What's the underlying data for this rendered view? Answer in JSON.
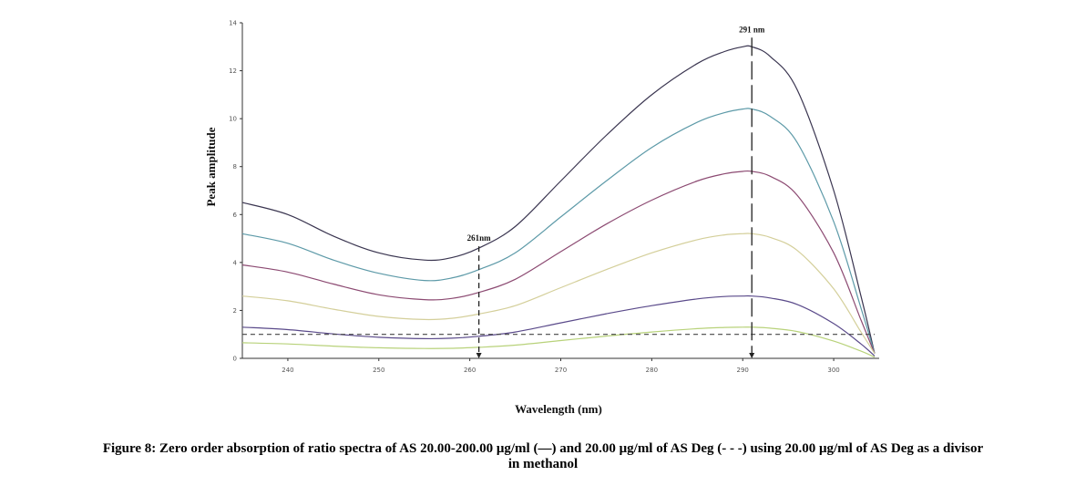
{
  "caption": {
    "line1": "Figure 8: Zero order absorption of ratio spectra of AS 20.00-200.00 μg/ml (—) and 20.00 μg/ml of AS Deg (- - -) using 20.00 μg/ml of AS Deg as a divisor",
    "line2": "in methanol"
  },
  "chart_data": {
    "type": "line",
    "xlabel": "Wavelength (nm)",
    "ylabel": "Peak amplitude",
    "xlim": [
      235,
      305
    ],
    "ylim": [
      0,
      14
    ],
    "xticks": [
      240,
      250,
      260,
      270,
      280,
      290,
      300
    ],
    "yticks": [
      0,
      2,
      4,
      6,
      8,
      10,
      12,
      14
    ],
    "grid": false,
    "series": [
      {
        "style": "solid",
        "color": "#3a3550",
        "x": [
          235,
          240,
          245,
          250,
          255,
          258,
          261,
          265,
          270,
          275,
          280,
          285,
          288,
          290,
          291,
          293,
          296,
          300,
          303,
          304.5
        ],
        "values": [
          6.5,
          6.0,
          5.1,
          4.4,
          4.1,
          4.2,
          4.6,
          5.5,
          7.4,
          9.3,
          11.0,
          12.3,
          12.8,
          13.0,
          13.0,
          12.6,
          11.2,
          7.0,
          2.6,
          0.2
        ]
      },
      {
        "style": "solid",
        "color": "#5d9aa8",
        "x": [
          235,
          240,
          245,
          250,
          255,
          258,
          261,
          265,
          270,
          275,
          280,
          285,
          288,
          290,
          291,
          293,
          296,
          300,
          303,
          304.5
        ],
        "values": [
          5.2,
          4.8,
          4.1,
          3.55,
          3.25,
          3.35,
          3.7,
          4.4,
          5.9,
          7.4,
          8.8,
          9.85,
          10.25,
          10.4,
          10.4,
          10.1,
          9.0,
          5.7,
          2.1,
          0.2
        ]
      },
      {
        "style": "solid",
        "color": "#8c4a72",
        "x": [
          235,
          240,
          245,
          250,
          255,
          258,
          261,
          265,
          270,
          275,
          280,
          285,
          288,
          290,
          291,
          293,
          296,
          300,
          303,
          304.5
        ],
        "values": [
          3.9,
          3.6,
          3.1,
          2.65,
          2.45,
          2.5,
          2.75,
          3.3,
          4.45,
          5.6,
          6.6,
          7.4,
          7.7,
          7.8,
          7.8,
          7.6,
          6.8,
          4.4,
          1.6,
          0.2
        ]
      },
      {
        "style": "solid",
        "color": "#d4cf9a",
        "x": [
          235,
          240,
          245,
          250,
          255,
          258,
          261,
          265,
          270,
          275,
          280,
          285,
          288,
          290,
          291,
          293,
          296,
          300,
          303,
          304.5
        ],
        "values": [
          2.6,
          2.4,
          2.05,
          1.75,
          1.62,
          1.67,
          1.85,
          2.2,
          2.95,
          3.7,
          4.4,
          4.95,
          5.15,
          5.2,
          5.2,
          5.05,
          4.5,
          2.9,
          1.1,
          0.2
        ]
      },
      {
        "style": "solid",
        "color": "#5a4a8a",
        "x": [
          235,
          240,
          245,
          250,
          255,
          258,
          261,
          265,
          270,
          275,
          280,
          285,
          288,
          290,
          291,
          293,
          296,
          300,
          303,
          304.5
        ],
        "values": [
          1.3,
          1.2,
          1.02,
          0.88,
          0.82,
          0.84,
          0.92,
          1.1,
          1.48,
          1.86,
          2.2,
          2.48,
          2.58,
          2.6,
          2.6,
          2.52,
          2.25,
          1.45,
          0.6,
          0.1
        ]
      },
      {
        "style": "solid",
        "color": "#b8d27a",
        "x": [
          235,
          240,
          245,
          250,
          255,
          258,
          261,
          265,
          270,
          275,
          280,
          285,
          288,
          290,
          291,
          293,
          296,
          300,
          303,
          304.5
        ],
        "values": [
          0.65,
          0.6,
          0.51,
          0.44,
          0.41,
          0.42,
          0.46,
          0.55,
          0.74,
          0.93,
          1.1,
          1.24,
          1.29,
          1.3,
          1.3,
          1.26,
          1.12,
          0.72,
          0.3,
          0.05
        ]
      },
      {
        "style": "dashed",
        "color": "#444444",
        "x": [
          235,
          304.5
        ],
        "values": [
          1.0,
          1.0
        ]
      }
    ],
    "annotations": [
      {
        "label": "261nm",
        "x": 261,
        "y_top": 4.6
      },
      {
        "label": "291 nm",
        "x": 291,
        "y_top": 13.0
      }
    ]
  }
}
